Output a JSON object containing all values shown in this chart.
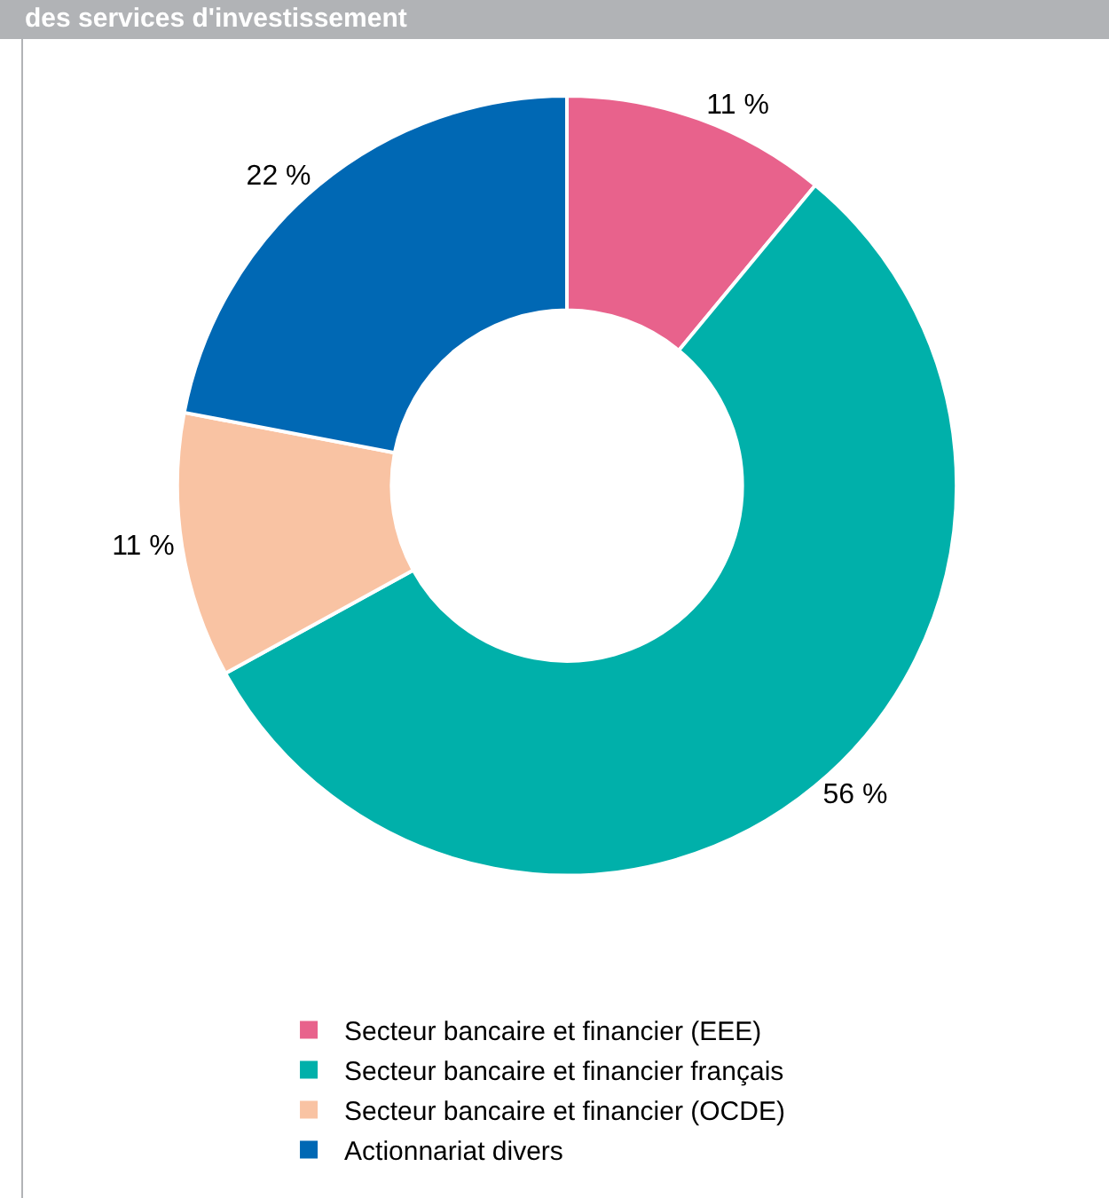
{
  "chart_data": {
    "type": "donut",
    "title": "des services d'investissement",
    "categories": [
      "Secteur bancaire et financier (EEE)",
      "Secteur bancaire et financier français",
      "Secteur bancaire et financier (OCDE)",
      "Actionnariat divers"
    ],
    "values": [
      11,
      56,
      11,
      22
    ],
    "colors": [
      "#e8628c",
      "#00b0aa",
      "#f9c3a3",
      "#0068b4"
    ],
    "value_labels": [
      "11 %",
      "56 %",
      "11 %",
      "22 %"
    ],
    "legend": "bottom"
  }
}
